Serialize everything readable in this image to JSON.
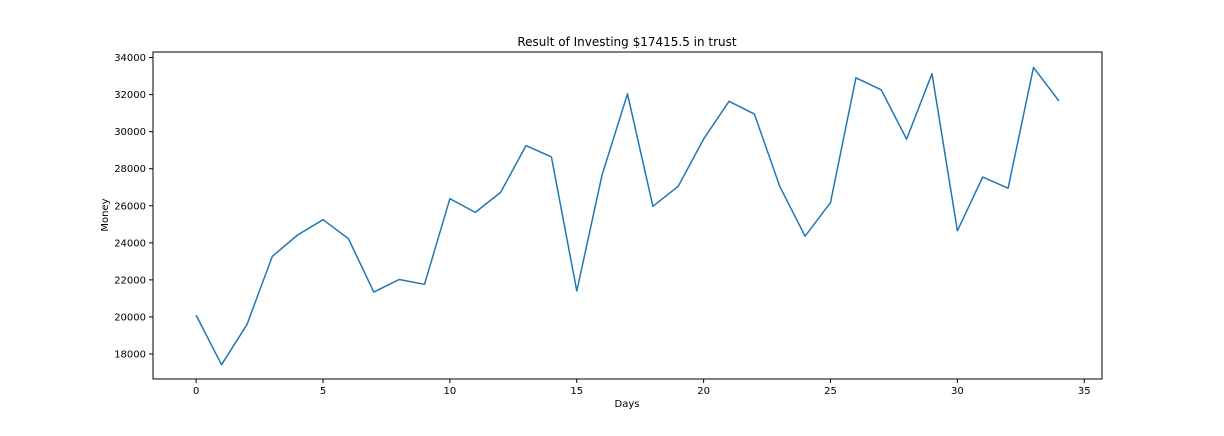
{
  "chart_data": {
    "type": "line",
    "title": "Result of Investing $17415.5 in trust",
    "xlabel": "Days",
    "ylabel": "Money",
    "xlim": [
      -1.7,
      35.7
    ],
    "ylim": [
      16650,
      34300
    ],
    "xticks": [
      0,
      5,
      10,
      15,
      20,
      25,
      30,
      35
    ],
    "xtick_labels": [
      "0",
      "5",
      "10",
      "15",
      "20",
      "25",
      "30",
      "35"
    ],
    "yticks": [
      18000,
      20000,
      22000,
      24000,
      26000,
      28000,
      30000,
      32000,
      34000
    ],
    "ytick_labels": [
      "18000",
      "20000",
      "22000",
      "24000",
      "26000",
      "28000",
      "30000",
      "32000",
      "34000"
    ],
    "grid": false,
    "series": [
      {
        "color": "#1f77b4",
        "x": [
          0,
          1,
          2,
          3,
          4,
          5,
          6,
          7,
          8,
          9,
          10,
          11,
          12,
          13,
          14,
          15,
          16,
          17,
          18,
          19,
          20,
          21,
          22,
          23,
          24,
          25,
          26,
          27,
          28,
          29,
          30,
          31,
          32,
          33,
          34
        ],
        "y": [
          20100,
          17420,
          19580,
          23270,
          24420,
          25250,
          24230,
          21340,
          22020,
          21760,
          26380,
          25640,
          26720,
          29250,
          28640,
          21400,
          27670,
          32040,
          25970,
          27050,
          29600,
          31640,
          30950,
          27050,
          24360,
          26170,
          32910,
          32260,
          29600,
          33130,
          24650,
          27550,
          26950,
          33470,
          31660
        ]
      }
    ]
  }
}
